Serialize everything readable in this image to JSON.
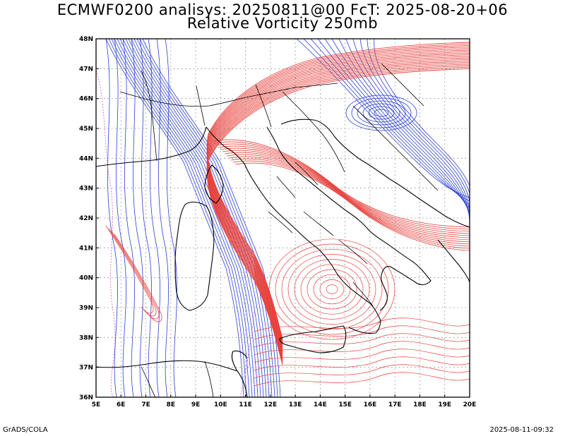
{
  "title": {
    "line1": "ECMWF0200 analisys: 20250811@00 FcT: 2025-08-20+06",
    "line2": "Relative Vorticity 250mb"
  },
  "footer": {
    "left": "GrADS/COLA",
    "right": "2025-08-11-09:32"
  },
  "colors": {
    "positive": "#e8413c",
    "negative": "#2b3fd6",
    "zero": "#d25ab4",
    "coast": "#000000",
    "grid": "#808080"
  },
  "map": {
    "lon_range": [
      5,
      20
    ],
    "lat_range": [
      36,
      48
    ],
    "lon_ticks": [
      "5E",
      "6E",
      "7E",
      "8E",
      "9E",
      "10E",
      "11E",
      "12E",
      "13E",
      "14E",
      "15E",
      "16E",
      "17E",
      "18E",
      "19E",
      "20E"
    ],
    "lat_ticks": [
      "36N",
      "37N",
      "38N",
      "39N",
      "40N",
      "41N",
      "42N",
      "43N",
      "44N",
      "45N",
      "46N",
      "47N",
      "48N"
    ],
    "grid": "dotted"
  }
}
